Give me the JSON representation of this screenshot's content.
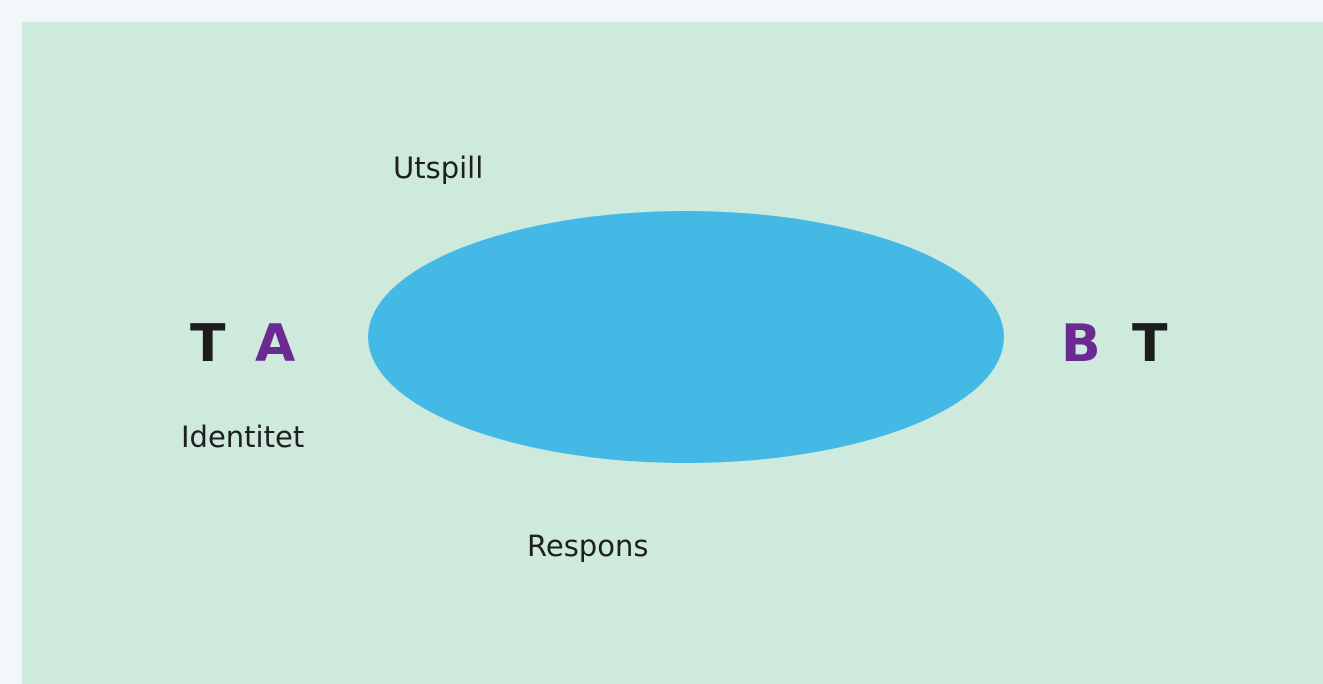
{
  "colors": {
    "page_background": "#f3f7f9",
    "panel_background": "#ceeadd",
    "ellipse_fill": "#45b9e6",
    "letter_dark": "#1c1c1c",
    "letter_accent": "#6a2a92",
    "label_text": "#1f1f1f"
  },
  "diagram": {
    "left_party": {
      "t_letter": "T",
      "letter": "A"
    },
    "right_party": {
      "letter": "B",
      "t_letter": "T"
    },
    "labels": {
      "utspill": "Utspill",
      "identitet": "Identitet",
      "respons": "Respons"
    }
  }
}
